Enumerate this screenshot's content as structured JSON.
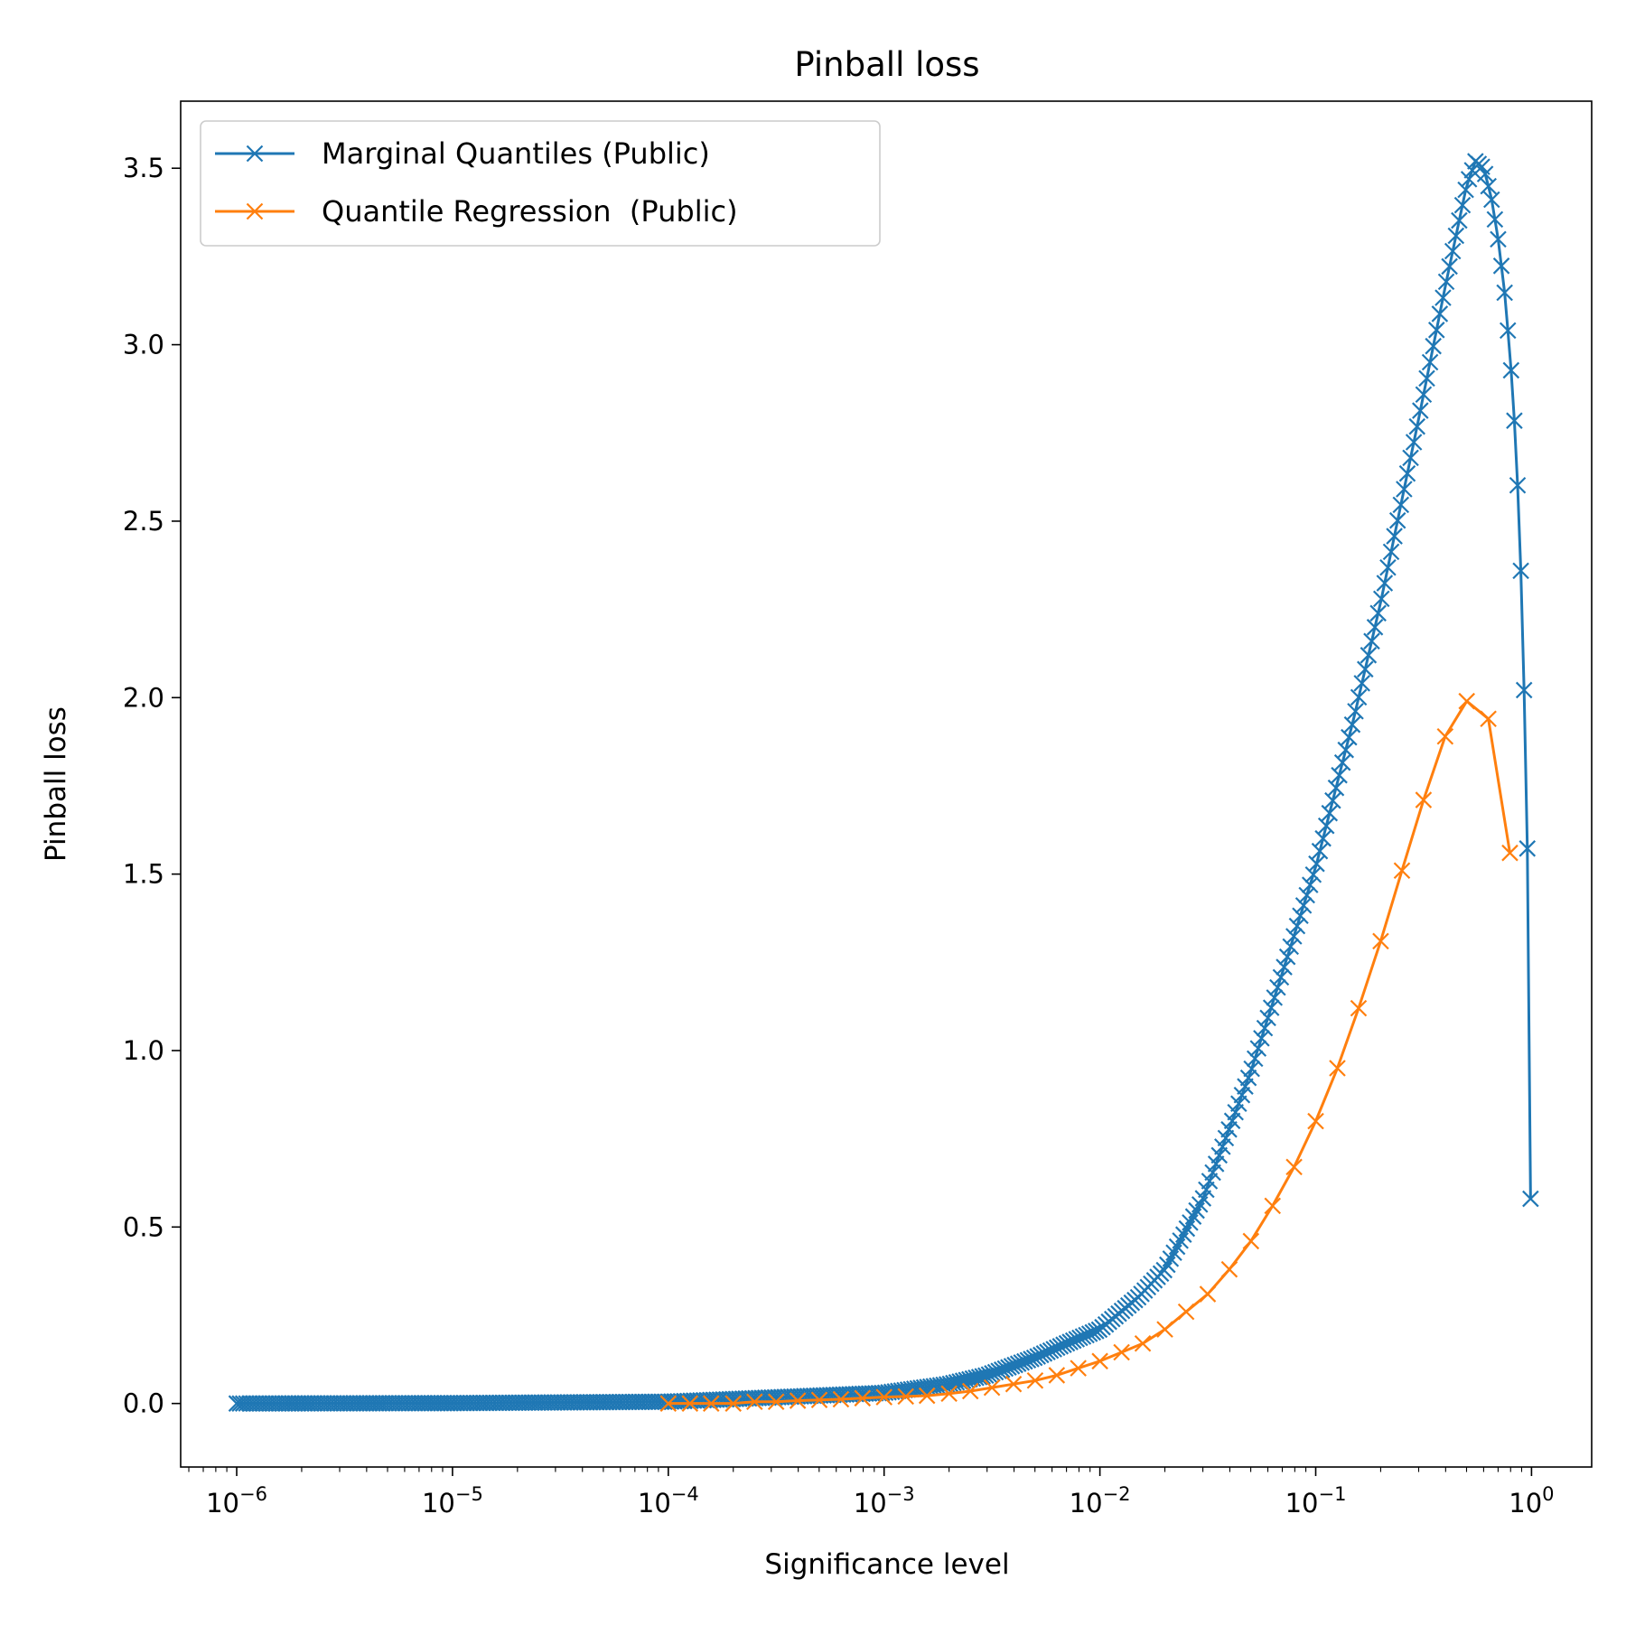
{
  "chart_data": {
    "type": "line",
    "title": "Pinball loss",
    "xlabel": "Significance level",
    "ylabel": "Pinball loss",
    "xscale": "log",
    "xlim": [
      5.5e-07,
      1.9
    ],
    "ylim": [
      -0.18,
      3.69
    ],
    "grid": false,
    "legend_position": "top-left",
    "x_ticks": [
      {
        "value": 1e-06,
        "base": "10",
        "exp": "−6"
      },
      {
        "value": 1e-05,
        "base": "10",
        "exp": "−5"
      },
      {
        "value": 0.0001,
        "base": "10",
        "exp": "−4"
      },
      {
        "value": 0.001,
        "base": "10",
        "exp": "−3"
      },
      {
        "value": 0.01,
        "base": "10",
        "exp": "−2"
      },
      {
        "value": 0.1,
        "base": "10",
        "exp": "−1"
      },
      {
        "value": 1,
        "base": "10",
        "exp": "0"
      }
    ],
    "y_ticks": [
      {
        "value": 0.0,
        "label": "0.0"
      },
      {
        "value": 0.5,
        "label": "0.5"
      },
      {
        "value": 1.0,
        "label": "1.0"
      },
      {
        "value": 1.5,
        "label": "1.5"
      },
      {
        "value": 2.0,
        "label": "2.0"
      },
      {
        "value": 2.5,
        "label": "2.5"
      },
      {
        "value": 3.0,
        "label": "3.0"
      },
      {
        "value": 3.5,
        "label": "3.5"
      }
    ],
    "series": [
      {
        "name": "Marginal Quantiles (Public)",
        "color": "#1f77b4",
        "marker": "x",
        "note": "dense sampling (~400 points, log-spaced from 1e-6 to 0.995)",
        "x": [
          1e-06,
          1e-05,
          0.0001,
          0.001,
          0.002,
          0.003,
          0.005,
          0.007,
          0.01,
          0.015,
          0.02,
          0.03,
          0.05,
          0.07,
          0.1,
          0.15,
          0.2,
          0.3,
          0.4,
          0.5,
          0.55,
          0.6,
          0.65,
          0.7,
          0.75,
          0.8,
          0.85,
          0.9,
          0.93,
          0.95,
          0.97,
          0.99
        ],
        "y": [
          0.0,
          0.001,
          0.005,
          0.03,
          0.055,
          0.08,
          0.13,
          0.17,
          0.21,
          0.3,
          0.38,
          0.58,
          0.94,
          1.22,
          1.52,
          1.94,
          2.27,
          2.79,
          3.17,
          3.45,
          3.52,
          3.5,
          3.42,
          3.3,
          3.15,
          2.95,
          2.7,
          2.3,
          1.95,
          1.7,
          1.3,
          0.58
        ]
      },
      {
        "name": "Quantile Regression  (Public)",
        "color": "#ff7f0e",
        "marker": "x",
        "x": [
          0.0001,
          0.000126,
          0.000158,
          0.0002,
          0.000251,
          0.000316,
          0.000398,
          0.000501,
          0.000631,
          0.000794,
          0.001,
          0.00126,
          0.00158,
          0.002,
          0.00251,
          0.00316,
          0.00398,
          0.00501,
          0.00631,
          0.00794,
          0.01,
          0.0126,
          0.0158,
          0.02,
          0.0251,
          0.0316,
          0.0398,
          0.0501,
          0.0631,
          0.0794,
          0.1,
          0.126,
          0.158,
          0.2,
          0.251,
          0.316,
          0.398,
          0.501,
          0.631,
          0.794
        ],
        "y": [
          0.0,
          0.0,
          0.0,
          0.0,
          0.005,
          0.005,
          0.008,
          0.01,
          0.012,
          0.015,
          0.018,
          0.02,
          0.022,
          0.028,
          0.035,
          0.045,
          0.055,
          0.065,
          0.08,
          0.1,
          0.12,
          0.145,
          0.17,
          0.21,
          0.26,
          0.31,
          0.38,
          0.46,
          0.56,
          0.67,
          0.8,
          0.95,
          1.12,
          1.31,
          1.51,
          1.71,
          1.89,
          1.99,
          1.94,
          1.56
        ]
      }
    ]
  }
}
